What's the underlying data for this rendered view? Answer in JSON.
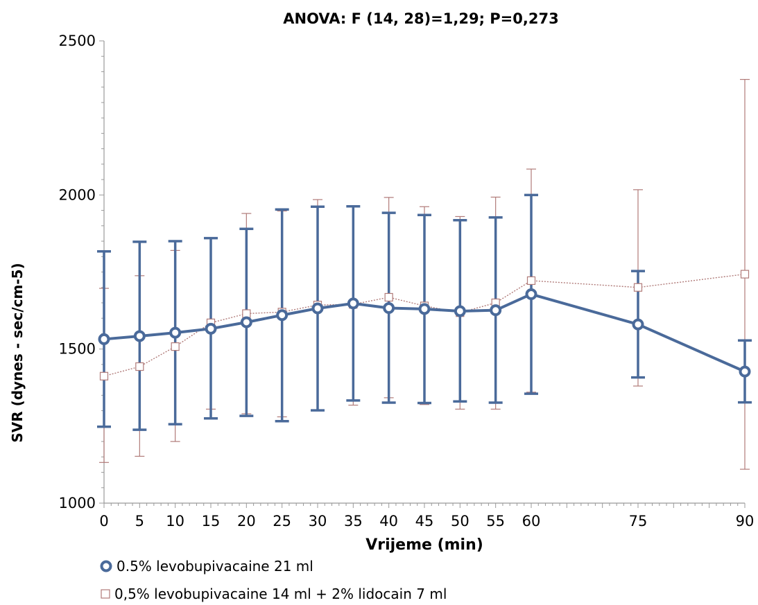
{
  "chart_data": {
    "type": "line",
    "title": "ANOVA: F (14, 28)=1,29; P=0,273",
    "xlabel": "Vrijeme (min)",
    "ylabel": "SVR (dynes - sec/cm-5)",
    "x": [
      0,
      5,
      10,
      15,
      20,
      25,
      30,
      35,
      40,
      45,
      50,
      55,
      60,
      75,
      90
    ],
    "xticks": [
      0,
      5,
      10,
      15,
      20,
      25,
      30,
      35,
      40,
      45,
      50,
      55,
      60,
      75,
      90
    ],
    "xlim": [
      0,
      90
    ],
    "ylim": [
      1000,
      2500
    ],
    "yticks": [
      1000,
      1500,
      2000,
      2500
    ],
    "grid": false,
    "legend_position": "bottom-left",
    "series": [
      {
        "name": "0.5% levobupivacaine 21 ml",
        "color": "#4a6a9a",
        "marker": "circle",
        "line_style": "solid",
        "values": [
          1532,
          1542,
          1553,
          1566,
          1587,
          1610,
          1632,
          1648,
          1633,
          1630,
          1623,
          1626,
          1678,
          1580,
          1427
        ],
        "error_upper": [
          1817,
          1848,
          1850,
          1860,
          1890,
          1953,
          1962,
          1963,
          1942,
          1935,
          1918,
          1927,
          2000,
          1753,
          1528
        ],
        "error_lower": [
          1248,
          1238,
          1256,
          1275,
          1283,
          1266,
          1301,
          1333,
          1326,
          1325,
          1330,
          1326,
          1355,
          1408,
          1327
        ]
      },
      {
        "name": "0,5% levobupivacaine 14 ml + 2% lidocain 7 ml",
        "color": "#b07a78",
        "marker": "square",
        "line_style": "dotted",
        "values": [
          1412,
          1443,
          1508,
          1585,
          1615,
          1620,
          1643,
          1645,
          1668,
          1640,
          1618,
          1650,
          1722,
          1700,
          1743
        ],
        "error_upper": [
          1697,
          1738,
          1820,
          1862,
          1940,
          1948,
          1985,
          1965,
          1992,
          1962,
          1930,
          1993,
          2084,
          2017,
          2375
        ],
        "error_lower": [
          1132,
          1152,
          1200,
          1305,
          1290,
          1280,
          1300,
          1318,
          1342,
          1320,
          1305,
          1305,
          1360,
          1380,
          1110
        ]
      }
    ]
  }
}
